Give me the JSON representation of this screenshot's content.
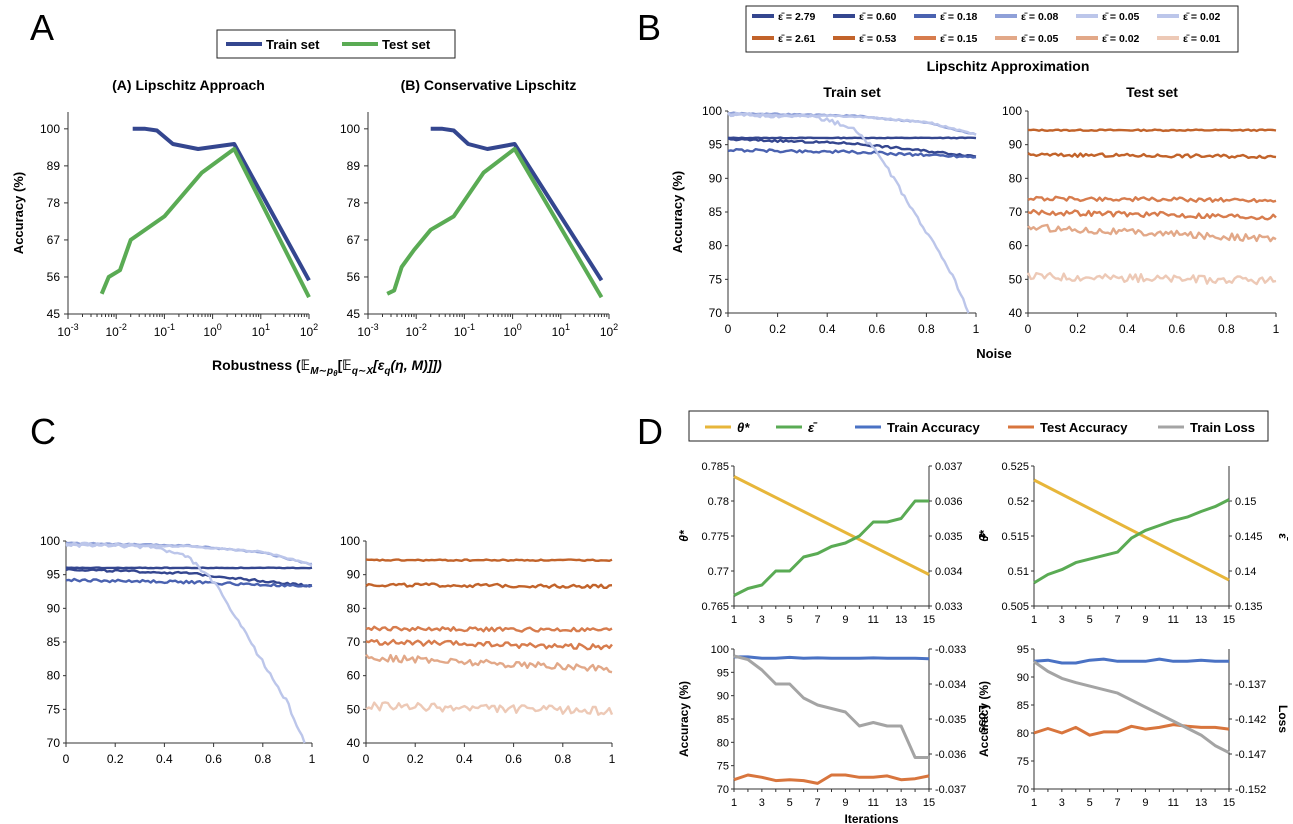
{
  "colors": {
    "navy": "#34468f",
    "blue_mid": "#4a62b0",
    "blue_light": "#8fa0d8",
    "blue_pale": "#bcc6ea",
    "green": "#5aab54",
    "orange": "#c2632a",
    "orange_mid": "#d77c4d",
    "orange_light": "#e2a888",
    "orange_pale": "#edc9b6",
    "gold": "#e7b63a",
    "std_blue": "#4a72c4",
    "std_orange": "#d8753d",
    "gray": "#a4a4a4"
  },
  "panel_letters": [
    "A",
    "B",
    "C",
    "D"
  ],
  "chart_data": [
    {
      "id": "A1",
      "type": "line",
      "title": "(A) Lipschitz Approach",
      "xscale": "log",
      "xlim": [
        0.001,
        100
      ],
      "ylim": [
        45,
        105
      ],
      "x_ticks": [
        "10^-3",
        "10^-2",
        "10^-1",
        "10^0",
        "10^1",
        "10^2"
      ],
      "y_ticks": [
        45,
        56,
        67,
        78,
        89,
        100
      ],
      "ylabel": "Accuracy (%)",
      "series": [
        {
          "name": "Train set",
          "color": "navy",
          "x": [
            0.022,
            0.04,
            0.07,
            0.15,
            0.5,
            2.8,
            100
          ],
          "y": [
            100,
            100,
            99.5,
            95.5,
            94,
            95.5,
            55
          ]
        },
        {
          "name": "Test set",
          "color": "green",
          "x": [
            0.005,
            0.007,
            0.012,
            0.02,
            0.1,
            0.6,
            2.8,
            100
          ],
          "y": [
            51,
            56,
            58,
            67,
            74,
            87,
            94,
            50
          ]
        }
      ]
    },
    {
      "id": "A2",
      "type": "line",
      "title": "(B) Conservative Lipschitz",
      "xscale": "log",
      "xlim": [
        0.001,
        100
      ],
      "ylim": [
        45,
        105
      ],
      "x_ticks": [
        "10^-3",
        "10^-2",
        "10^-1",
        "10^0",
        "10^1",
        "10^2"
      ],
      "y_ticks": [
        45,
        56,
        67,
        78,
        89,
        100
      ],
      "series": [
        {
          "name": "Train set",
          "color": "navy",
          "x": [
            0.02,
            0.035,
            0.06,
            0.12,
            0.3,
            1.1,
            70
          ],
          "y": [
            100,
            100,
            99.5,
            95.5,
            94,
            95.5,
            55
          ]
        },
        {
          "name": "Test set",
          "color": "green",
          "x": [
            0.0025,
            0.0035,
            0.005,
            0.009,
            0.02,
            0.06,
            0.25,
            1.1,
            70
          ],
          "y": [
            51,
            52,
            59,
            64,
            70,
            74,
            87,
            94,
            50
          ]
        }
      ]
    },
    {
      "id": "B_train",
      "type": "line",
      "title": "Train set",
      "xlabel": "",
      "ylabel": "Accuracy (%)",
      "xlim": [
        0,
        1
      ],
      "ylim": [
        70,
        100
      ],
      "x_ticks": [
        "0",
        "0.2",
        "0.4",
        "0.6",
        "0.8",
        "1"
      ],
      "y_ticks": [
        70,
        75,
        80,
        85,
        90,
        95,
        100
      ],
      "series": [
        {
          "name": "ε̄ = 2.79",
          "color": "navy",
          "points": [
            [
              0,
              96
            ],
            [
              0.5,
              96
            ],
            [
              1,
              96
            ]
          ],
          "noise": 0.05
        },
        {
          "name": "ε̄ = 0.60",
          "color": "navy",
          "points": [
            [
              0,
              95.8
            ],
            [
              0.5,
              95.2
            ],
            [
              1,
              93.3
            ]
          ],
          "noise": 0.15
        },
        {
          "name": "ε̄ = 0.18",
          "color": "blue_mid",
          "points": [
            [
              0,
              94.2
            ],
            [
              0.5,
              93.9
            ],
            [
              1,
              93.2
            ]
          ],
          "noise": 0.2
        },
        {
          "name": "ε̄ = 0.08",
          "color": "blue_light",
          "points": [
            [
              0,
              99.7
            ],
            [
              0.5,
              99.3
            ],
            [
              0.8,
              98.3
            ],
            [
              1,
              96.5
            ]
          ],
          "noise": 0.1
        },
        {
          "name": "ε̄ = 0.05",
          "color": "blue_pale",
          "points": [
            [
              0,
              99.5
            ],
            [
              0.5,
              99.2
            ],
            [
              0.8,
              98.4
            ],
            [
              1,
              96.5
            ]
          ],
          "noise": 0.1
        },
        {
          "name": "ε̄ = 0.02",
          "color": "blue_pale",
          "points": [
            [
              0,
              99.5
            ],
            [
              0.35,
              99.2
            ],
            [
              0.5,
              97.5
            ],
            [
              0.6,
              94
            ],
            [
              0.7,
              88
            ],
            [
              0.8,
              82
            ],
            [
              0.9,
              76
            ],
            [
              0.97,
              70
            ]
          ],
          "noise": 0.3
        }
      ]
    },
    {
      "id": "B_test",
      "type": "line",
      "title": "Test set",
      "xlim": [
        0,
        1
      ],
      "ylim": [
        40,
        100
      ],
      "x_ticks": [
        "0",
        "0.2",
        "0.4",
        "0.6",
        "0.8",
        "1"
      ],
      "y_ticks": [
        40,
        50,
        60,
        70,
        80,
        90,
        100
      ],
      "series": [
        {
          "name": "ε̄ = 2.61",
          "color": "orange",
          "points": [
            [
              0,
              94.3
            ],
            [
              1,
              94.3
            ]
          ],
          "noise": 0.2
        },
        {
          "name": "ε̄ = 0.53",
          "color": "orange",
          "points": [
            [
              0,
              87
            ],
            [
              1,
              86.5
            ]
          ],
          "noise": 0.5
        },
        {
          "name": "ε̄ = 0.15",
          "color": "orange_mid",
          "points": [
            [
              0,
              74
            ],
            [
              1,
              73.5
            ]
          ],
          "noise": 0.6
        },
        {
          "name": "ε̄ = 0.05",
          "color": "orange_mid",
          "points": [
            [
              0,
              70
            ],
            [
              1,
              68.5
            ]
          ],
          "noise": 0.8
        },
        {
          "name": "ε̄ = 0.02",
          "color": "orange_light",
          "points": [
            [
              0,
              65.5
            ],
            [
              1,
              62
            ]
          ],
          "noise": 1.0
        },
        {
          "name": "ε̄ = 0.01",
          "color": "orange_pale",
          "points": [
            [
              0,
              51
            ],
            [
              1,
              49.5
            ]
          ],
          "noise": 1.2
        }
      ]
    },
    {
      "id": "D1",
      "type": "line",
      "xlim": [
        1,
        15
      ],
      "ylim_left": [
        0.765,
        0.785
      ],
      "ylim_right": [
        0.033,
        0.037
      ],
      "x_ticks": [
        1,
        3,
        5,
        7,
        9,
        11,
        13,
        15
      ],
      "y_ticks_left": [
        "0.765",
        "0.77",
        "0.775",
        "0.78",
        "0.785"
      ],
      "y_ticks_right": [
        "0.033",
        "0.034",
        "0.035",
        "0.036",
        "0.037"
      ],
      "ylabel_left": "θ*",
      "ylabel_right": "ε̄",
      "series": [
        {
          "name": "θ*",
          "axis": "left",
          "color": "gold",
          "x": [
            1,
            15
          ],
          "y": [
            0.7835,
            0.7695
          ]
        },
        {
          "name": "ε̄",
          "axis": "right",
          "color": "green",
          "x": [
            1,
            2,
            3,
            4,
            5,
            6,
            7,
            8,
            9,
            10,
            11,
            12,
            13,
            14,
            15
          ],
          "y": [
            0.0333,
            0.0335,
            0.0336,
            0.034,
            0.034,
            0.0344,
            0.0345,
            0.0347,
            0.0348,
            0.035,
            0.0354,
            0.0354,
            0.0355,
            0.036,
            0.036
          ]
        }
      ]
    },
    {
      "id": "D2",
      "type": "line",
      "xlim": [
        1,
        15
      ],
      "ylim_left": [
        0.505,
        0.525
      ],
      "ylim_right": [
        0.135,
        0.155
      ],
      "x_ticks": [
        1,
        3,
        5,
        7,
        9,
        11,
        13,
        15
      ],
      "y_ticks_left": [
        "0.505",
        "0.51",
        "0.515",
        "0.52",
        "0.525"
      ],
      "y_ticks_right": [
        "0.135",
        "0.14",
        "0.145",
        "0.15"
      ],
      "ylabel_left": "θ*",
      "ylabel_right": "ε̄",
      "series": [
        {
          "name": "θ*",
          "axis": "left",
          "color": "gold",
          "x": [
            1,
            15
          ],
          "y": [
            0.523,
            0.5087
          ]
        },
        {
          "name": "ε̄",
          "axis": "right",
          "color": "green",
          "x": [
            1,
            2,
            3,
            4,
            5,
            6,
            7,
            8,
            9,
            10,
            11,
            12,
            13,
            14,
            15
          ],
          "y": [
            0.1383,
            0.1395,
            0.1402,
            0.1412,
            0.1417,
            0.1422,
            0.1427,
            0.1447,
            0.1458,
            0.1465,
            0.1472,
            0.1477,
            0.1485,
            0.1492,
            0.1502
          ]
        }
      ]
    },
    {
      "id": "D3",
      "type": "line",
      "xlim": [
        1,
        15
      ],
      "ylim_left": [
        70,
        100
      ],
      "ylim_right": [
        -0.037,
        -0.033
      ],
      "x_ticks": [
        1,
        3,
        5,
        7,
        9,
        11,
        13,
        15
      ],
      "y_ticks_left": [
        70,
        75,
        80,
        85,
        90,
        95,
        100
      ],
      "y_ticks_right": [
        "-0.033",
        "-0.034",
        "-0.035",
        "-0.036",
        "-0.037"
      ],
      "ylabel_left": "Accuracy (%)",
      "ylabel_right": "Loss",
      "xlabel": "Iterations",
      "series": [
        {
          "name": "Train Accuracy",
          "axis": "left",
          "color": "std_blue",
          "x": [
            1,
            2,
            3,
            4,
            5,
            6,
            7,
            8,
            9,
            10,
            11,
            12,
            13,
            14,
            15
          ],
          "y": [
            98.3,
            98.3,
            98,
            98,
            98.2,
            98,
            98.1,
            98,
            98,
            98,
            98.1,
            98,
            98,
            98,
            97.9
          ]
        },
        {
          "name": "Test Accuracy",
          "axis": "left",
          "color": "std_orange",
          "x": [
            1,
            2,
            3,
            4,
            5,
            6,
            7,
            8,
            9,
            10,
            11,
            12,
            13,
            14,
            15
          ],
          "y": [
            72,
            73,
            72.5,
            71.8,
            72,
            71.8,
            71.2,
            73,
            73,
            72.5,
            72.5,
            72.8,
            72,
            72.2,
            72.8
          ]
        },
        {
          "name": "Train Loss",
          "axis": "right",
          "color": "gray",
          "x": [
            1,
            2,
            3,
            4,
            5,
            6,
            7,
            8,
            9,
            10,
            11,
            12,
            13,
            14,
            15
          ],
          "y": [
            -0.0332,
            -0.0333,
            -0.0336,
            -0.034,
            -0.034,
            -0.0344,
            -0.0346,
            -0.0347,
            -0.0348,
            -0.0352,
            -0.0351,
            -0.0352,
            -0.0352,
            -0.0361,
            -0.0361
          ]
        }
      ]
    },
    {
      "id": "D4",
      "type": "line",
      "xlim": [
        1,
        15
      ],
      "ylim_left": [
        70,
        95
      ],
      "ylim_right": [
        -0.152,
        -0.132
      ],
      "x_ticks": [
        1,
        3,
        5,
        7,
        9,
        11,
        13,
        15
      ],
      "y_ticks_left": [
        70,
        75,
        80,
        85,
        90,
        95
      ],
      "y_ticks_right": [
        "-0.137",
        "-0.142",
        "-0.147",
        "-0.152"
      ],
      "ylabel_left": "Accuracy (%)",
      "ylabel_right": "Loss",
      "series": [
        {
          "name": "Train Accuracy",
          "axis": "left",
          "color": "std_blue",
          "x": [
            1,
            2,
            3,
            4,
            5,
            6,
            7,
            8,
            9,
            10,
            11,
            12,
            13,
            14,
            15
          ],
          "y": [
            92.8,
            93,
            92.5,
            92.5,
            93,
            93.2,
            92.8,
            92.8,
            92.8,
            93.2,
            92.8,
            92.8,
            93,
            92.8,
            92.8
          ]
        },
        {
          "name": "Test Accuracy",
          "axis": "left",
          "color": "std_orange",
          "x": [
            1,
            2,
            3,
            4,
            5,
            6,
            7,
            8,
            9,
            10,
            11,
            12,
            13,
            14,
            15
          ],
          "y": [
            80,
            80.8,
            80,
            81,
            79.6,
            80.2,
            80.2,
            81.2,
            80.7,
            81,
            81.5,
            81.2,
            81,
            81,
            80.7
          ]
        },
        {
          "name": "Train Loss",
          "axis": "right",
          "color": "gray",
          "x": [
            1,
            2,
            3,
            4,
            5,
            6,
            7,
            8,
            9,
            10,
            11,
            12,
            13,
            14,
            15
          ],
          "y": [
            -0.1338,
            -0.1352,
            -0.1362,
            -0.1368,
            -0.1373,
            -0.1378,
            -0.1383,
            -0.1393,
            -0.1403,
            -0.1413,
            -0.1423,
            -0.1433,
            -0.1443,
            -0.1458,
            -0.1468
          ]
        }
      ]
    }
  ],
  "panel_a": {
    "legend": [
      "Train set",
      "Test set"
    ],
    "xlabel_prefix": "Robustness (",
    "xlabel_mid": "𝔼",
    "xlabel_sub1": "M∼p",
    "xlabel_sub1b": "θ",
    "xlabel_rest": "[𝔼",
    "xlabel_sub2": "q∼X",
    "xlabel_end": "[ε",
    "xlabel_sub3": "q",
    "xlabel_tail": "(η, M)]])"
  },
  "panel_b": {
    "title": "Lipschitz Approximation",
    "legend_blue": [
      "ε̄ = 2.79",
      "ε̄ = 0.60",
      "ε̄ = 0.18",
      "ε̄ = 0.08",
      "ε̄ = 0.05",
      "ε̄ = 0.02"
    ],
    "legend_orange": [
      "ε̄ = 2.61",
      "ε̄ = 0.53",
      "ε̄ = 0.15",
      "ε̄ = 0.05",
      "ε̄ = 0.02",
      "ε̄ = 0.01"
    ],
    "xlabel": "Noise"
  },
  "panel_d": {
    "legend": [
      "θ*",
      "ε̄",
      "Train Accuracy",
      "Test Accuracy",
      "Train Loss"
    ]
  }
}
